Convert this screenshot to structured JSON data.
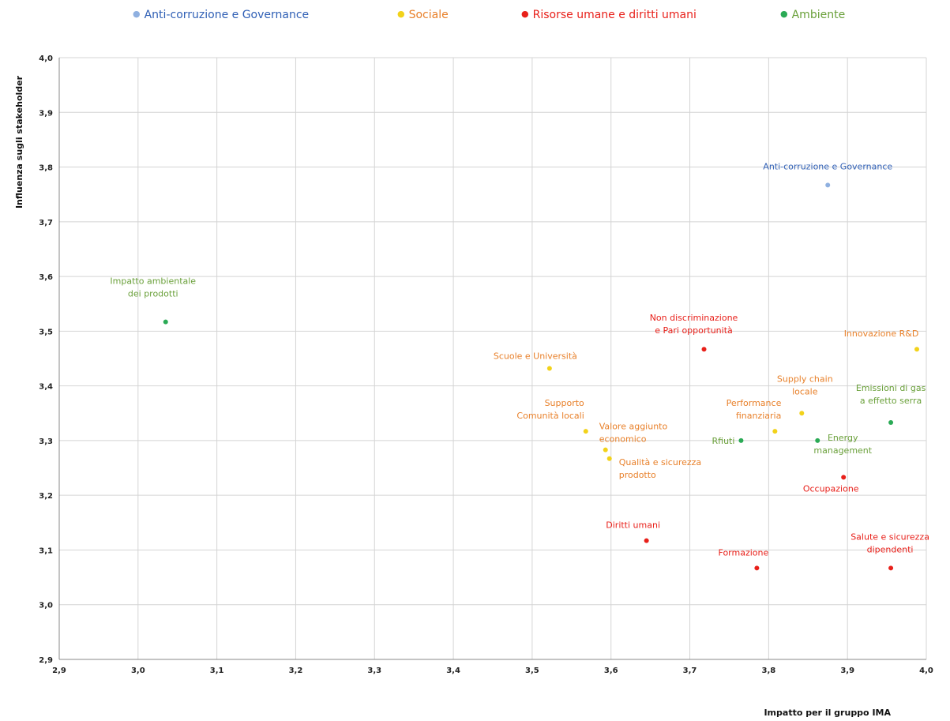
{
  "chart_data": {
    "type": "scatter",
    "xlabel": "Impatto per il gruppo IMA",
    "ylabel": "Influenza sugli stakeholder",
    "xlim": [
      2.9,
      4.0
    ],
    "ylim": [
      2.9,
      4.0
    ],
    "x_ticks": [
      "2,9",
      "3,0",
      "3,1",
      "3,2",
      "3,3",
      "3,4",
      "3,5",
      "3,6",
      "3,7",
      "3,8",
      "3,9",
      "4,0"
    ],
    "y_ticks": [
      "2,9",
      "3,0",
      "3,1",
      "3,2",
      "3,3",
      "3,4",
      "3,5",
      "3,6",
      "3,7",
      "3,8",
      "3,9",
      "4,0"
    ],
    "grid": true,
    "legend_position": "top",
    "series": [
      {
        "name": "Anti-corruzione e Governance",
        "color": "#8fb0e0",
        "label_color": "#2f5fb5",
        "points": [
          {
            "label": "Anti-corruzione e Governance",
            "x": 3.875,
            "y": 3.767,
            "anchor": "middle",
            "lines": [
              "Anti-corruzione e Governance"
            ],
            "dy": -20
          }
        ]
      },
      {
        "name": "Sociale",
        "color": "#f2d21a",
        "label_color": "#e8802a",
        "points": [
          {
            "label": "Scuole e Università",
            "x": 3.522,
            "y": 3.432,
            "anchor": "middle",
            "lines": [
              "Scuole e Università"
            ],
            "dy": -12,
            "dx": -18
          },
          {
            "label": "Supporto Comunità locali",
            "x": 3.568,
            "y": 3.317,
            "anchor": "end",
            "lines": [
              "Supporto",
              "Comunità locali"
            ],
            "dy": -32,
            "dx": -2
          },
          {
            "label": "Valore aggiunto economico",
            "x": 3.593,
            "y": 3.283,
            "anchor": "start",
            "lines": [
              "Valore aggiunto",
              "economico"
            ],
            "dy": -26,
            "dx": -8
          },
          {
            "label": "Qualità e sicurezza prodotto",
            "x": 3.598,
            "y": 3.267,
            "anchor": "start",
            "lines": [
              "Qualità e sicurezza",
              "prodotto"
            ],
            "dy": 8,
            "dx": 12
          },
          {
            "label": "Performance finanziaria",
            "x": 3.808,
            "y": 3.317,
            "anchor": "end",
            "lines": [
              "Performance",
              "finanziaria"
            ],
            "dy": -32,
            "dx": 8
          },
          {
            "label": "Supply chain locale",
            "x": 3.842,
            "y": 3.35,
            "anchor": "middle",
            "lines": [
              "Supply chain",
              "locale"
            ],
            "dy": -40,
            "dx": 4
          },
          {
            "label": "Innovazione R&D",
            "x": 3.988,
            "y": 3.467,
            "anchor": "middle",
            "lines": [
              "Innovazione R&D"
            ],
            "dy": -16,
            "dx": -45
          }
        ]
      },
      {
        "name": "Risorse umane e diritti umani",
        "color": "#e8201a",
        "label_color": "#e8201a",
        "points": [
          {
            "label": "Non discriminazione e Pari opportunità",
            "x": 3.718,
            "y": 3.467,
            "anchor": "middle",
            "lines": [
              "Non discriminazione",
              "e Pari opportunità"
            ],
            "dy": -36,
            "dx": -13
          },
          {
            "label": "Diritti umani",
            "x": 3.645,
            "y": 3.117,
            "anchor": "middle",
            "lines": [
              "Diritti umani"
            ],
            "dy": -16,
            "dx": -17
          },
          {
            "label": "Formazione",
            "x": 3.785,
            "y": 3.067,
            "anchor": "middle",
            "lines": [
              "Formazione"
            ],
            "dy": -16,
            "dx": -17
          },
          {
            "label": "Occupazione",
            "x": 3.895,
            "y": 3.233,
            "anchor": "middle",
            "lines": [
              "Occupazione"
            ],
            "dy": 18,
            "dx": -16
          },
          {
            "label": "Salute e sicurezza dipendenti",
            "x": 3.955,
            "y": 3.067,
            "anchor": "middle",
            "lines": [
              "Salute e sicurezza",
              "dipendenti"
            ],
            "dy": -36,
            "dx": -1
          }
        ]
      },
      {
        "name": "Ambiente",
        "color": "#2aaa55",
        "label_color": "#6aa03a",
        "points": [
          {
            "label": "Impatto ambientale dei prodotti",
            "x": 3.035,
            "y": 3.517,
            "anchor": "middle",
            "lines": [
              "Impatto ambientale",
              "dei prodotti"
            ],
            "dy": -48,
            "dx": -16
          },
          {
            "label": "Rfiuti",
            "x": 3.765,
            "y": 3.3,
            "anchor": "end",
            "lines": [
              "Rfiuti"
            ],
            "dy": 4,
            "dx": -8
          },
          {
            "label": "Energy management",
            "x": 3.862,
            "y": 3.3,
            "anchor": "middle",
            "lines": [
              "Energy",
              "management"
            ],
            "dy": 0,
            "dx": 32
          },
          {
            "label": "Emissioni di gas a effetto serra",
            "x": 3.955,
            "y": 3.333,
            "anchor": "middle",
            "lines": [
              "Emissioni di gas",
              "a effetto serra"
            ],
            "dy": -40,
            "dx": 0
          }
        ]
      }
    ]
  }
}
